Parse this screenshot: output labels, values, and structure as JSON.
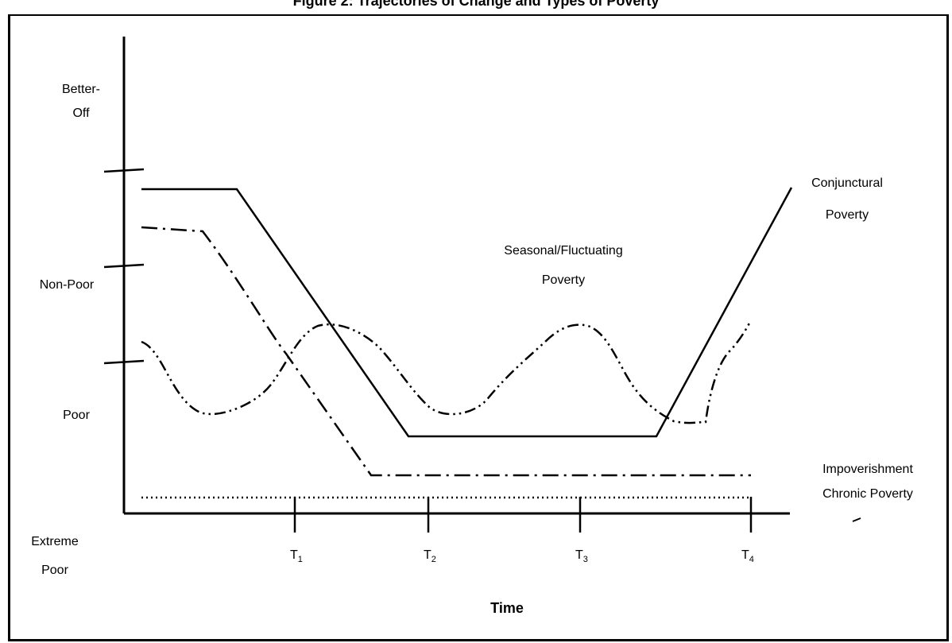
{
  "figure": {
    "title": "Figure 2: Trajectories of Change and Types of Poverty"
  },
  "y_axis": {
    "levels": [
      {
        "line1": "Better-",
        "line2": "Off"
      },
      {
        "line1": "Non-Poor",
        "line2": ""
      },
      {
        "line1": "Poor",
        "line2": ""
      },
      {
        "line1": "Extreme",
        "line2": "Poor"
      }
    ]
  },
  "x_axis": {
    "title": "Time",
    "ticks": [
      {
        "label": "T",
        "sub": "1"
      },
      {
        "label": "T",
        "sub": "2"
      },
      {
        "label": "T",
        "sub": "3"
      },
      {
        "label": "T",
        "sub": "4"
      }
    ]
  },
  "curves": {
    "conjunctural": {
      "line1": "Conjunctural",
      "line2": "Poverty",
      "style": "solid"
    },
    "seasonal": {
      "line1": "Seasonal/Fluctuating",
      "line2": "Poverty",
      "style": "dash-dot-dot"
    },
    "impoverishment": {
      "label": "Impoverishment",
      "style": "dash-dot"
    },
    "chronic": {
      "label": "Chronic Poverty",
      "style": "dotted"
    }
  },
  "colors": {
    "ink": "#000000",
    "background": "#ffffff"
  }
}
